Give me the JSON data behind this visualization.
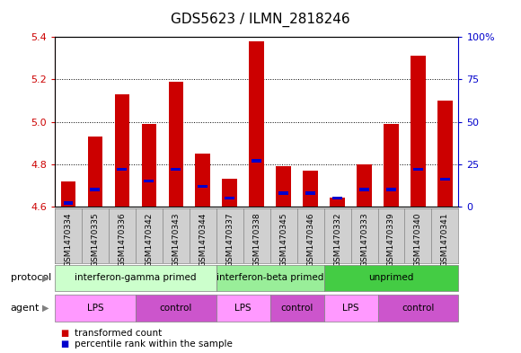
{
  "title": "GDS5623 / ILMN_2818246",
  "samples": [
    "GSM1470334",
    "GSM1470335",
    "GSM1470336",
    "GSM1470342",
    "GSM1470343",
    "GSM1470344",
    "GSM1470337",
    "GSM1470338",
    "GSM1470345",
    "GSM1470346",
    "GSM1470332",
    "GSM1470333",
    "GSM1470339",
    "GSM1470340",
    "GSM1470341"
  ],
  "transformed_count": [
    4.72,
    4.93,
    5.13,
    4.99,
    5.19,
    4.85,
    4.73,
    5.38,
    4.79,
    4.77,
    4.64,
    4.8,
    4.99,
    5.31,
    5.1
  ],
  "percentile_rank": [
    2,
    10,
    22,
    15,
    22,
    12,
    5,
    27,
    8,
    8,
    5,
    10,
    10,
    22,
    16
  ],
  "base_value": 4.6,
  "ylim": [
    4.6,
    5.4
  ],
  "y2lim": [
    0,
    100
  ],
  "yticks": [
    4.6,
    4.8,
    5.0,
    5.2,
    5.4
  ],
  "y2ticks": [
    0,
    25,
    50,
    75,
    100
  ],
  "bar_color": "#cc0000",
  "percentile_color": "#0000cc",
  "protocol_groups": [
    {
      "label": "interferon-gamma primed",
      "start": 0,
      "end": 5,
      "color": "#ccffcc"
    },
    {
      "label": "interferon-beta primed",
      "start": 6,
      "end": 9,
      "color": "#99ee99"
    },
    {
      "label": "unprimed",
      "start": 10,
      "end": 14,
      "color": "#44cc44"
    }
  ],
  "agent_groups": [
    {
      "label": "LPS",
      "start": 0,
      "end": 2,
      "color": "#ff99ff"
    },
    {
      "label": "control",
      "start": 3,
      "end": 5,
      "color": "#cc55cc"
    },
    {
      "label": "LPS",
      "start": 6,
      "end": 7,
      "color": "#ff99ff"
    },
    {
      "label": "control",
      "start": 8,
      "end": 9,
      "color": "#cc55cc"
    },
    {
      "label": "LPS",
      "start": 10,
      "end": 11,
      "color": "#ff99ff"
    },
    {
      "label": "control",
      "start": 12,
      "end": 14,
      "color": "#cc55cc"
    }
  ],
  "legend_items": [
    {
      "label": "transformed count",
      "color": "#cc0000"
    },
    {
      "label": "percentile rank within the sample",
      "color": "#0000cc"
    }
  ],
  "protocol_label": "protocol",
  "agent_label": "agent",
  "sample_bg_color": "#d0d0d0",
  "title_fontsize": 11
}
